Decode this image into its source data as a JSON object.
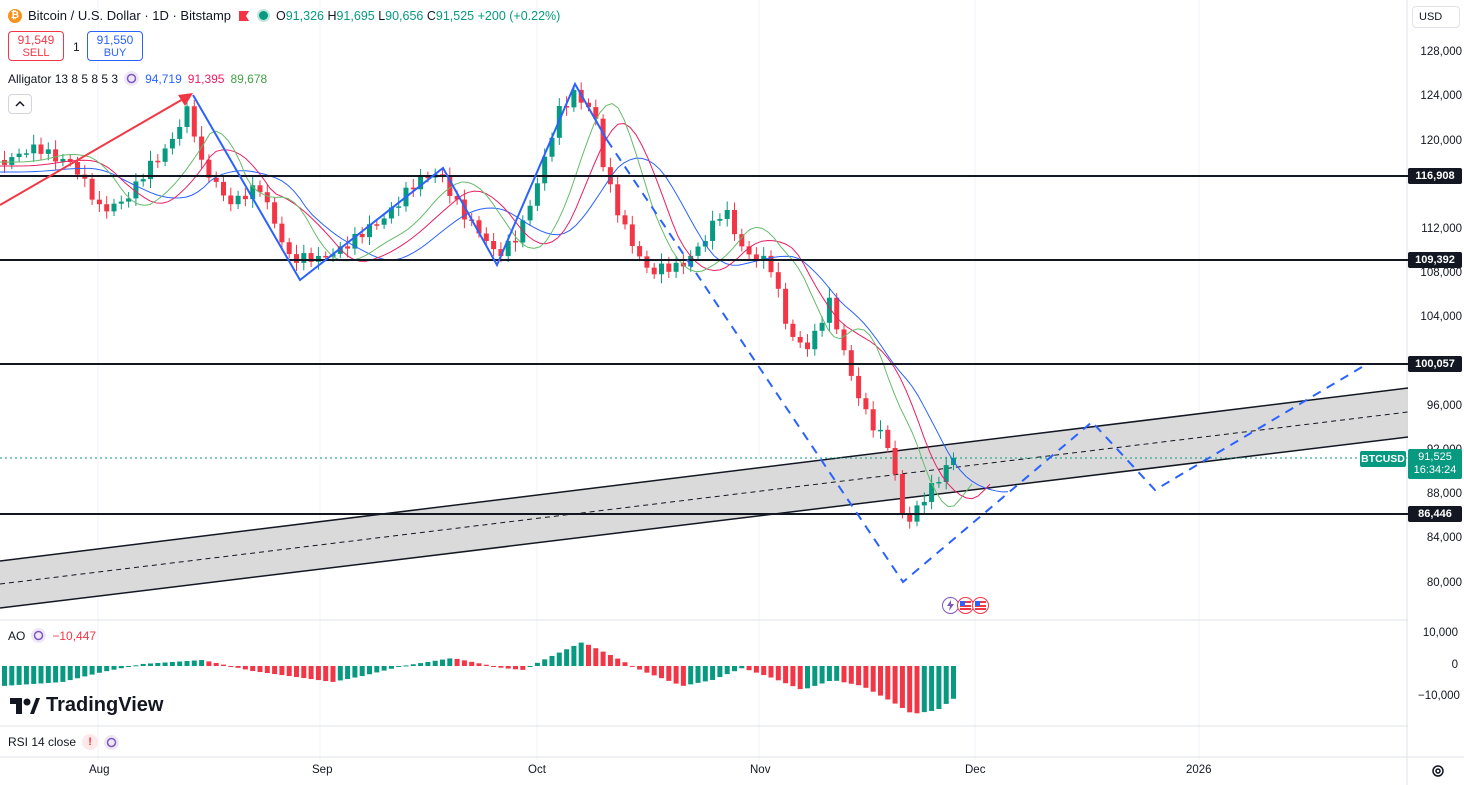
{
  "header": {
    "symbol_title": "Bitcoin / U.S. Dollar · 1D · Bitstamp",
    "ohlc": {
      "o_label": "O",
      "o": "91,326",
      "h_label": "H",
      "h": "91,695",
      "l_label": "L",
      "l": "90,656",
      "c_label": "C",
      "c": "91,525",
      "change": "+200 (+0.22%)"
    }
  },
  "trade": {
    "sell_price": "91,549",
    "sell_label": "SELL",
    "quantity": "1",
    "buy_price": "91,550",
    "buy_label": "BUY"
  },
  "alligator": {
    "label": "Alligator 13 8 5 8 5 3",
    "jaw": "94,719",
    "teeth": "91,395",
    "lips": "89,678"
  },
  "currency": "USD",
  "price_axis": [
    "128,000",
    "124,000",
    "120,000",
    "112,000",
    "108,000",
    "104,000",
    "96,000",
    "92,000",
    "88,000",
    "84,000",
    "80,000"
  ],
  "levels": [
    "116,908",
    "109,392",
    "100,057",
    "86,446"
  ],
  "last_price": {
    "symbol": "BTCUSD",
    "price": "91,525",
    "countdown": "16:34:24"
  },
  "ao": {
    "label": "AO",
    "value": "−10,447",
    "axis": [
      "10,000",
      "0",
      "−10,000"
    ]
  },
  "rsi": {
    "label": "RSI 14 close"
  },
  "logo": "TradingView",
  "time_axis": [
    "Aug",
    "Sep",
    "Oct",
    "Nov",
    "Dec",
    "2026"
  ],
  "colors": {
    "up": "#089981",
    "down": "#f23645",
    "jaw": "#2962ff",
    "teeth": "#e91e63",
    "lips": "#66bb6a",
    "channel": "#d1d1d1"
  },
  "chart_data": {
    "type": "candlestick",
    "title": "Bitcoin / U.S. Dollar · 1D · Bitstamp",
    "ylim": [
      78000,
      130000
    ],
    "horizontal_levels": [
      116908,
      109392,
      100057,
      86446
    ],
    "last_close": 91525,
    "ao_latest": -10447
  }
}
